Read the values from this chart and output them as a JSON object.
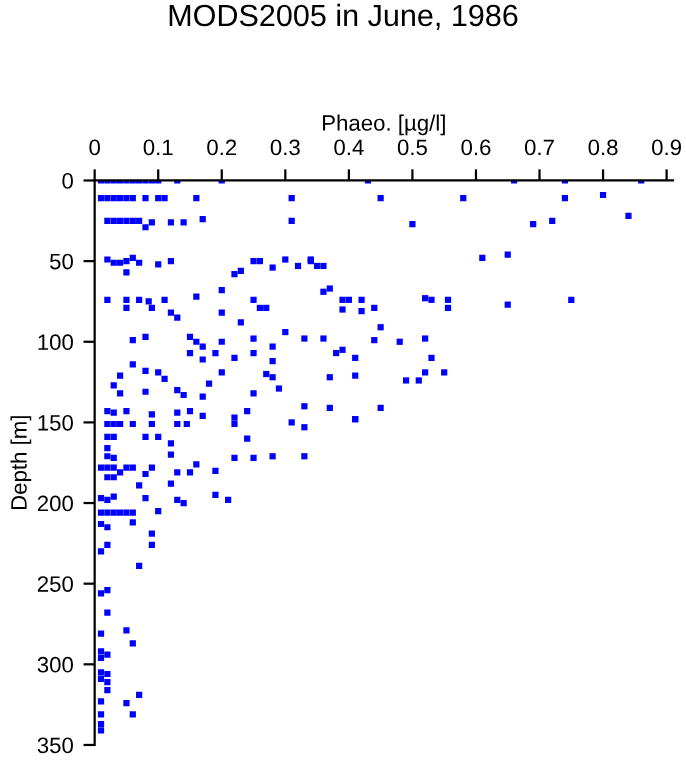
{
  "chart_data": {
    "type": "scatter",
    "title": "MODS2005 in June, 1986",
    "xlabel": "Phaeo. [µg/l]",
    "ylabel": "Depth [m]",
    "xlim": [
      0,
      0.91
    ],
    "ylim": [
      350,
      0
    ],
    "xticks": [
      0,
      0.1,
      0.2,
      0.3,
      0.4,
      0.5,
      0.6,
      0.7,
      0.8,
      0.9
    ],
    "yticks": [
      0,
      50,
      100,
      150,
      200,
      250,
      300,
      350
    ],
    "grid": false,
    "marker": "square",
    "series": [
      {
        "color": "#0000ff",
        "x": [
          0.01,
          0.02,
          0.03,
          0.04,
          0.05,
          0.06,
          0.07,
          0.08,
          0.09,
          0.1,
          0.13,
          0.2,
          0.43,
          0.66,
          0.74,
          0.86,
          0.01,
          0.02,
          0.03,
          0.04,
          0.05,
          0.06,
          0.08,
          0.1,
          0.11,
          0.16,
          0.31,
          0.45,
          0.58,
          0.74,
          0.8,
          0.84,
          0.5,
          0.69,
          0.72,
          0.02,
          0.03,
          0.04,
          0.05,
          0.06,
          0.07,
          0.08,
          0.09,
          0.12,
          0.14,
          0.17,
          0.31,
          0.02,
          0.03,
          0.04,
          0.05,
          0.06,
          0.07,
          0.05,
          0.1,
          0.12,
          0.23,
          0.22,
          0.25,
          0.26,
          0.28,
          0.3,
          0.32,
          0.34,
          0.35,
          0.36,
          0.34,
          0.61,
          0.65,
          0.02,
          0.05,
          0.07,
          0.085,
          0.11,
          0.16,
          0.2,
          0.25,
          0.36,
          0.37,
          0.39,
          0.4,
          0.42,
          0.05,
          0.09,
          0.12,
          0.13,
          0.2,
          0.26,
          0.27,
          0.39,
          0.42,
          0.52,
          0.53,
          0.556,
          0.556,
          0.65,
          0.75,
          0.44,
          0.06,
          0.08,
          0.15,
          0.16,
          0.17,
          0.2,
          0.23,
          0.25,
          0.28,
          0.3,
          0.33,
          0.36,
          0.44,
          0.45,
          0.15,
          0.17,
          0.19,
          0.22,
          0.25,
          0.28,
          0.38,
          0.39,
          0.41,
          0.48,
          0.52,
          0.53,
          0.37,
          0.41,
          0.49,
          0.51,
          0.52,
          0.55,
          0.41,
          0.33,
          0.04,
          0.06,
          0.08,
          0.1,
          0.11,
          0.03,
          0.04,
          0.08,
          0.13,
          0.14,
          0.17,
          0.18,
          0.2,
          0.25,
          0.27,
          0.28,
          0.29,
          0.02,
          0.03,
          0.05,
          0.09,
          0.13,
          0.15,
          0.17,
          0.22,
          0.24,
          0.31,
          0.33,
          0.37,
          0.41,
          0.45,
          0.02,
          0.03,
          0.04,
          0.06,
          0.09,
          0.13,
          0.145,
          0.22,
          0.02,
          0.03,
          0.08,
          0.1,
          0.24,
          0.02,
          0.12,
          0.02,
          0.03,
          0.12,
          0.16,
          0.22,
          0.25,
          0.28,
          0.33,
          0.01,
          0.02,
          0.03,
          0.05,
          0.06,
          0.09,
          0.13,
          0.15,
          0.19,
          0.02,
          0.03,
          0.08,
          0.12,
          0.07,
          0.04,
          0.01,
          0.02,
          0.03,
          0.08,
          0.13,
          0.14,
          0.19,
          0.21,
          0.01,
          0.02,
          0.03,
          0.04,
          0.05,
          0.06,
          0.1,
          0.01,
          0.02,
          0.06,
          0.09,
          0.02,
          0.09,
          0.01,
          0.07,
          0.02,
          0.01,
          0.02,
          0.05,
          0.01,
          0.06,
          0.01,
          0.02,
          0.01,
          0.01,
          0.02,
          0.01,
          0.02,
          0.02,
          0.07,
          0.01,
          0.05,
          0.01,
          0.06,
          0.01,
          0.01
        ],
        "values": [
          0,
          0,
          0,
          0,
          0,
          0,
          0,
          0,
          0,
          0,
          0,
          0,
          0,
          0,
          0,
          0,
          11,
          11,
          11,
          11,
          11,
          11,
          11,
          11,
          11,
          11,
          11,
          11,
          11,
          11,
          9,
          22,
          27,
          27,
          25,
          25,
          25,
          25,
          25,
          25,
          25,
          29,
          26,
          26,
          26,
          24,
          25,
          49,
          51,
          51,
          50,
          48,
          51,
          57,
          52,
          50,
          56,
          58,
          50,
          50,
          54,
          49,
          53,
          49,
          53,
          53,
          50,
          48,
          46,
          74,
          74,
          74,
          75,
          74,
          72,
          68,
          74,
          69,
          67,
          74,
          74,
          74,
          79,
          79,
          82,
          85,
          82,
          79,
          79,
          80,
          81,
          73,
          74,
          74,
          79,
          77,
          74,
          79,
          99,
          97,
          97,
          100,
          103,
          100,
          88,
          98,
          103,
          94,
          98,
          98,
          99,
          91,
          107,
          111,
          107,
          110,
          107,
          112,
          107,
          105,
          110,
          100,
          98,
          110,
          122,
          121,
          124,
          124,
          119,
          119,
          148,
          153,
          121,
          114,
          118,
          119,
          123,
          127,
          132,
          131,
          130,
          133,
          134,
          126,
          119,
          132,
          120,
          122,
          129,
          143,
          144,
          143,
          145,
          144,
          143,
          146,
          147,
          143,
          150,
          140,
          141,
          148,
          141,
          151,
          151,
          151,
          151,
          151,
          151,
          151,
          151,
          159,
          159,
          159,
          159,
          160,
          166,
          163,
          171,
          172,
          170,
          176,
          172,
          172,
          171,
          171,
          178,
          178,
          178,
          178,
          178,
          178,
          181,
          181,
          180,
          184,
          184,
          182,
          188,
          189,
          181,
          197,
          198,
          196,
          197,
          198,
          200,
          195,
          198,
          206,
          206,
          206,
          206,
          206,
          206,
          205,
          213,
          215,
          212,
          219,
          226,
          226,
          230,
          239,
          254,
          256,
          268,
          279,
          281,
          287,
          292,
          294,
          296,
          305,
          306,
          309,
          311,
          316,
          319,
          323,
          324,
          331,
          331,
          337,
          341
        ]
      }
    ]
  }
}
